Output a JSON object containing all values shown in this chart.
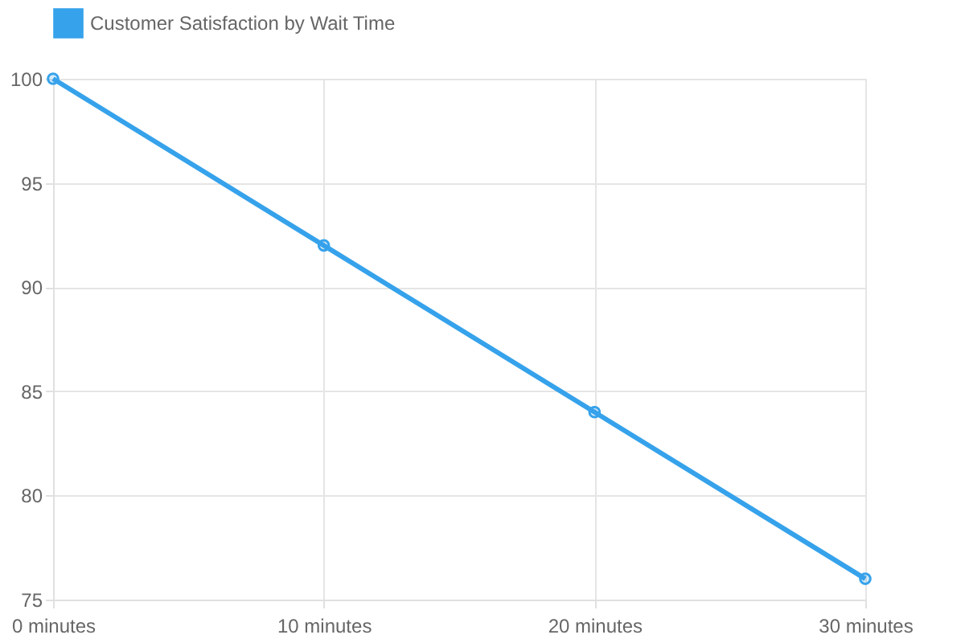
{
  "chart_data": {
    "type": "line",
    "categories": [
      "0 minutes",
      "10 minutes",
      "20 minutes",
      "30 minutes"
    ],
    "series": [
      {
        "name": "Customer Satisfaction by Wait Time",
        "color": "#36a2eb",
        "values": [
          100,
          92,
          84,
          76
        ]
      }
    ],
    "ylim": [
      75,
      100
    ],
    "yticks": [
      75,
      80,
      85,
      90,
      95,
      100
    ],
    "grid": true,
    "legend": "top",
    "marker": "circle",
    "line_style": "solid"
  }
}
